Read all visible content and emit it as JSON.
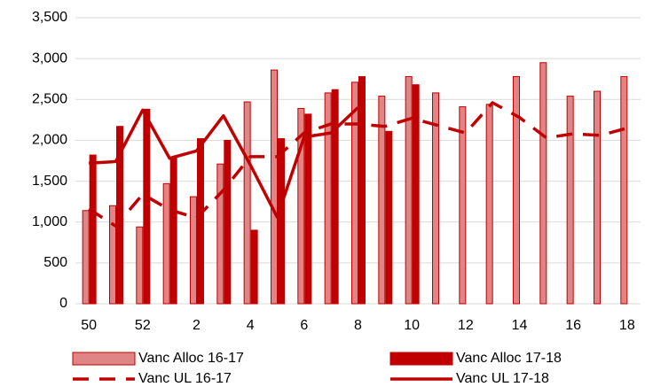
{
  "chart_data": {
    "type": "bar-line",
    "categories": [
      "50",
      null,
      "52",
      null,
      "2",
      null,
      "4",
      null,
      "6",
      null,
      "8",
      null,
      "10",
      null,
      "12",
      null,
      "14",
      null,
      "16",
      null,
      "18"
    ],
    "series": [
      {
        "name": "Vanc Alloc 16-17",
        "kind": "bar",
        "color": "#e08585",
        "edge": "#c00000",
        "values": [
          1140,
          1200,
          940,
          1470,
          1310,
          1710,
          2470,
          2860,
          2390,
          2580,
          2710,
          2540,
          2780,
          2580,
          2410,
          2440,
          2780,
          2950,
          2540,
          2600,
          2780
        ]
      },
      {
        "name": "Vanc Alloc 17-18",
        "kind": "bar",
        "color": "#c00000",
        "edge": "#c00000",
        "values": [
          1820,
          2170,
          2380,
          1780,
          2020,
          2000,
          900,
          2020,
          2320,
          2620,
          2780,
          2110,
          2680,
          null,
          null,
          null,
          null,
          null,
          null,
          null,
          null
        ]
      },
      {
        "name": "Vanc UL 16-17",
        "kind": "line",
        "dash": true,
        "color": "#c00000",
        "values": [
          1160,
          950,
          1340,
          1150,
          1050,
          1390,
          1800,
          1800,
          2090,
          2200,
          2200,
          2170,
          2270,
          2180,
          2090,
          2460,
          2280,
          2030,
          2080,
          2060,
          2150
        ]
      },
      {
        "name": "Vanc UL 17-18",
        "kind": "line",
        "dash": false,
        "color": "#c00000",
        "values": [
          1720,
          1740,
          2370,
          1780,
          1870,
          2300,
          1700,
          1060,
          2040,
          2090,
          2400,
          null,
          null,
          null,
          null,
          null,
          null,
          null,
          null,
          null,
          null
        ]
      }
    ],
    "ylim": [
      0,
      3500
    ],
    "yticks": [
      0,
      500,
      {
        "value": 1000,
        "label": "1,000"
      },
      {
        "value": 1500,
        "label": "1,500"
      },
      {
        "value": 2000,
        "label": "2,000"
      },
      {
        "value": 2500,
        "label": "2,500"
      },
      {
        "value": 3000,
        "label": "3,000"
      },
      {
        "value": 3500,
        "label": "3,500"
      }
    ],
    "grid": true,
    "legend": "bottom"
  }
}
